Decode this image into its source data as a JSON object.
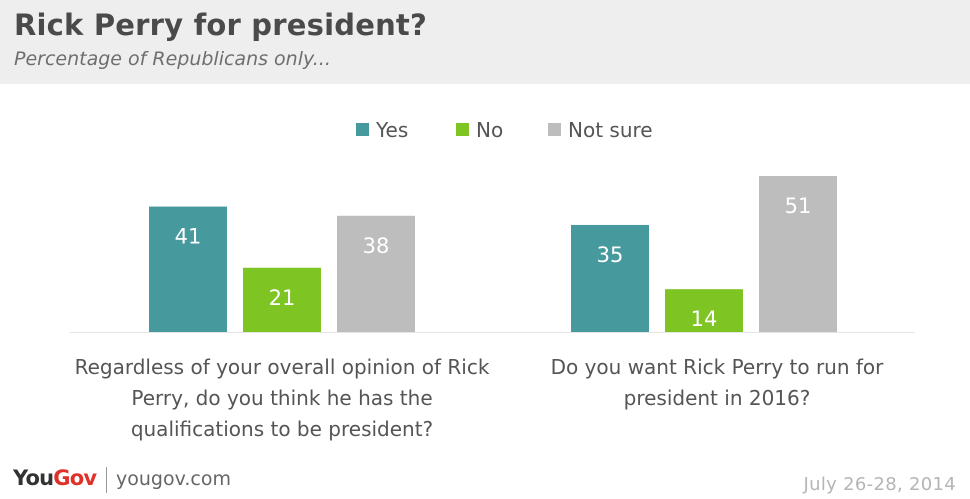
{
  "header": {
    "title": "Rick Perry for president?",
    "subtitle": "Percentage of Republicans only..."
  },
  "colors": {
    "yes": "#46999c",
    "no": "#7ec423",
    "not_sure": "#bdbdbd",
    "bar_label": "#ffffff",
    "baseline": "#e6e6e6",
    "logo_accent": "#e0302a"
  },
  "legend": [
    {
      "label": "Yes",
      "color": "#46999c"
    },
    {
      "label": "No",
      "color": "#7ec423"
    },
    {
      "label": "Not sure",
      "color": "#bdbdbd"
    }
  ],
  "chart_data": {
    "type": "bar",
    "title": "Rick Perry for president?",
    "subtitle": "Percentage of Republicans only...",
    "categories": [
      "Regardless of your overall opinion of Rick Perry, do you think he has the qualifications to be president?",
      "Do you want Rick Perry to run for president in 2016?"
    ],
    "category_lines": [
      [
        "Regardless of your overall opinion of Rick",
        "Perry, do you think he has the",
        "qualifications to be president?"
      ],
      [
        "Do you want Rick Perry to run for",
        "president in 2016?"
      ]
    ],
    "series": [
      {
        "name": "Yes",
        "color": "#46999c",
        "values": [
          41,
          35
        ]
      },
      {
        "name": "No",
        "color": "#7ec423",
        "values": [
          21,
          14
        ]
      },
      {
        "name": "Not sure",
        "color": "#bdbdbd",
        "values": [
          38,
          51
        ]
      }
    ],
    "ylim": [
      0,
      51
    ],
    "data_labels": true,
    "grid": false,
    "legend_position": "top-center",
    "xlabel": "",
    "ylabel": ""
  },
  "footer": {
    "logo_part1": "You",
    "logo_part2": "Gov",
    "site": "yougov.com",
    "date": "July 26-28, 2014"
  }
}
